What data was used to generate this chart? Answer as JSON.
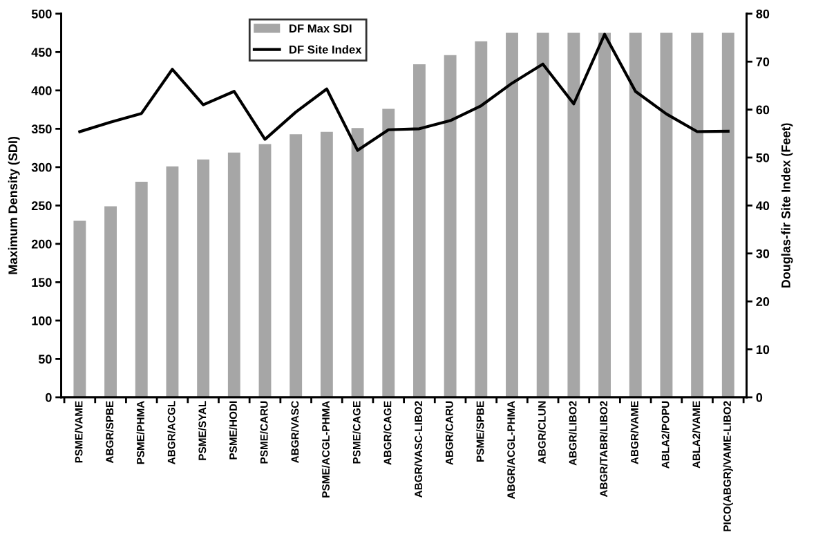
{
  "chart_data": {
    "type": "bar",
    "ylabel": "Maximum Density (SDI)",
    "y2label": "Douglas-fir Site Index (Feet)",
    "categories": [
      "PSME/VAME",
      "ABGR/SPBE",
      "PSME/PHMA",
      "ABGR/ACGL",
      "PSME/SYAL",
      "PSME/HODI",
      "PSME/CARU",
      "ABGR/VASC",
      "PSME/ACGL-PHMA",
      "PSME/CAGE",
      "ABGR/CAGE",
      "ABGR/VASC-LIBO2",
      "ABGR/CARU",
      "PSME/SPBE",
      "ABGR/ACGL-PHMA",
      "ABGR/CLUN",
      "ABGR/LIBO2",
      "ABGR/TABR/LIBO2",
      "ABGR/VAME",
      "ABLA2/POPU",
      "ABLA2/VAME",
      "PICO(ABGR)/VAME-LIBO2"
    ],
    "series": [
      {
        "name": "DF Max SDI",
        "color": "#a6a6a6",
        "values": [
          230,
          249,
          281,
          301,
          310,
          319,
          330,
          343,
          346,
          351,
          376,
          434,
          446,
          464,
          475,
          475,
          475,
          475,
          475,
          475,
          475,
          475
        ]
      },
      {
        "name": "DF Site Index",
        "type": "line",
        "axis": "y2",
        "color": "#000000",
        "values": [
          55.4,
          57.4,
          59.2,
          68.4,
          61.0,
          63.8,
          53.8,
          59.5,
          64.3,
          51.5,
          55.8,
          56.0,
          57.7,
          60.8,
          65.5,
          69.5,
          61.2,
          75.7,
          63.8,
          59.1,
          55.4,
          55.5
        ]
      }
    ],
    "ylim": [
      0,
      500
    ],
    "yticks": [
      0,
      50,
      100,
      150,
      200,
      250,
      300,
      350,
      400,
      450,
      500
    ],
    "y2lim": [
      0,
      80
    ],
    "y2ticks": [
      0,
      10,
      20,
      30,
      40,
      50,
      60,
      70,
      80
    ],
    "grid": false,
    "legend": "top",
    "marker": "none",
    "line_style": "solid"
  }
}
